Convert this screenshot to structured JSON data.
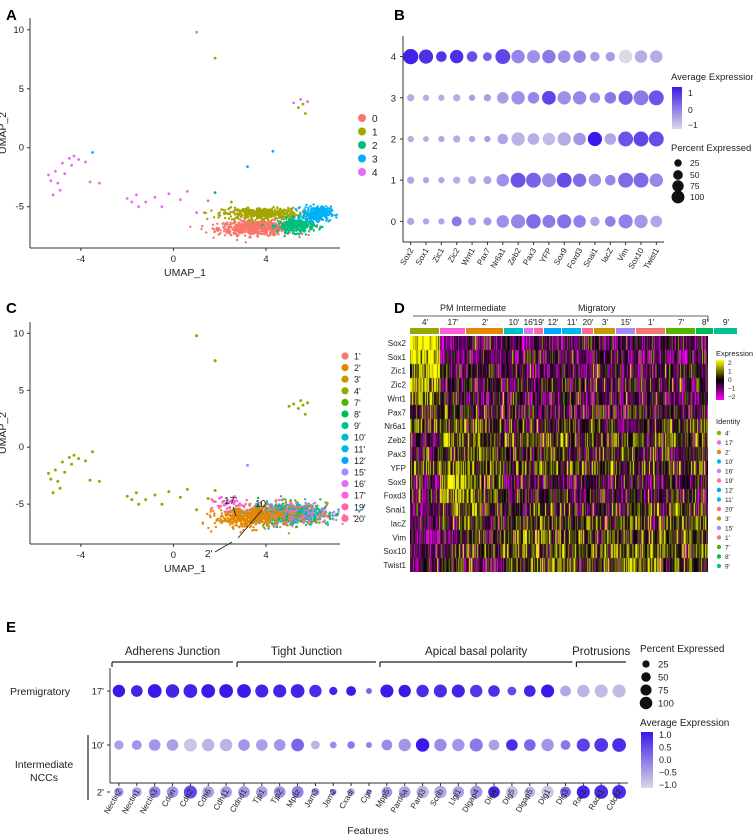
{
  "chart_data": [
    {
      "panel": "A",
      "type": "scatter",
      "xlabel": "UMAP_1",
      "ylabel": "UMAP_2",
      "xticks": [
        "-4",
        "0",
        "4"
      ],
      "yticks": [
        "10",
        "5",
        "0",
        "-5"
      ],
      "xlim": [
        -6.2,
        7.2
      ],
      "ylim": [
        -8.5,
        11.0
      ],
      "legend": [
        {
          "label": "0",
          "color": "#F8766D"
        },
        {
          "label": "1",
          "color": "#A3A500"
        },
        {
          "label": "2",
          "color": "#00BF7D"
        },
        {
          "label": "3",
          "color": "#00B0F6"
        },
        {
          "label": "4",
          "color": "#E76BF3"
        }
      ],
      "clusters": [
        {
          "label": "0",
          "center": [
            3.6,
            -6.8
          ],
          "spread": [
            1.5,
            0.55
          ],
          "n": 650
        },
        {
          "label": "1",
          "center": [
            3.8,
            -5.6
          ],
          "spread": [
            1.5,
            0.45
          ],
          "n": 420
        },
        {
          "label": "2",
          "center": [
            5.3,
            -6.6
          ],
          "spread": [
            0.7,
            0.55
          ],
          "n": 300
        },
        {
          "label": "3",
          "center": [
            6.2,
            -5.6
          ],
          "spread": [
            0.55,
            0.55
          ],
          "n": 280
        },
        {
          "label": "4",
          "center": [
            -4.2,
            -2.6
          ],
          "spread": [
            1.0,
            1.0
          ],
          "n": 0
        }
      ],
      "scattered_points": [
        {
          "label": "4",
          "x": -5.1,
          "y": -2.0
        },
        {
          "label": "4",
          "x": -4.8,
          "y": -1.3
        },
        {
          "label": "4",
          "x": -4.5,
          "y": -0.9
        },
        {
          "label": "4",
          "x": -4.3,
          "y": -0.7
        },
        {
          "label": "4",
          "x": -4.1,
          "y": -1.0
        },
        {
          "label": "4",
          "x": -5.3,
          "y": -2.8
        },
        {
          "label": "4",
          "x": -5.0,
          "y": -3.0
        },
        {
          "label": "4",
          "x": -4.7,
          "y": -2.2
        },
        {
          "label": "4",
          "x": -5.4,
          "y": -2.3
        },
        {
          "label": "4",
          "x": -4.9,
          "y": -3.6
        },
        {
          "label": "4",
          "x": -5.2,
          "y": -4.0
        },
        {
          "label": "4",
          "x": -4.4,
          "y": -1.5
        },
        {
          "label": "4",
          "x": -3.8,
          "y": -1.2
        },
        {
          "label": "4",
          "x": -3.6,
          "y": -2.9
        },
        {
          "label": "4",
          "x": -3.2,
          "y": -3.0
        },
        {
          "label": "4",
          "x": -2.0,
          "y": -4.3
        },
        {
          "label": "4",
          "x": -1.8,
          "y": -4.6
        },
        {
          "label": "4",
          "x": -1.5,
          "y": -5.0
        },
        {
          "label": "4",
          "x": -1.2,
          "y": -4.6
        },
        {
          "label": "4",
          "x": -0.8,
          "y": -4.2
        },
        {
          "label": "4",
          "x": -0.5,
          "y": -5.0
        },
        {
          "label": "4",
          "x": -0.2,
          "y": -3.9
        },
        {
          "label": "4",
          "x": 0.3,
          "y": -4.4
        },
        {
          "label": "4",
          "x": 0.6,
          "y": -3.7
        },
        {
          "label": "4",
          "x": 1.0,
          "y": -5.5
        },
        {
          "label": "4",
          "x": 1.5,
          "y": -4.5
        },
        {
          "label": "4",
          "x": -1.6,
          "y": -4.0
        },
        {
          "label": "4",
          "x": 1.0,
          "y": 9.8
        },
        {
          "label": "1",
          "x": 1.8,
          "y": 7.6
        },
        {
          "label": "4",
          "x": 5.2,
          "y": 3.8
        },
        {
          "label": "4",
          "x": 5.5,
          "y": 4.1
        },
        {
          "label": "1",
          "x": 5.4,
          "y": 3.4
        },
        {
          "label": "4",
          "x": 5.8,
          "y": 3.9
        },
        {
          "label": "1",
          "x": 5.6,
          "y": 3.7
        },
        {
          "label": "1",
          "x": 5.7,
          "y": 2.9
        },
        {
          "label": "3",
          "x": 4.3,
          "y": -0.3
        },
        {
          "label": "3",
          "x": 3.2,
          "y": -1.6
        },
        {
          "label": "3",
          "x": -3.5,
          "y": -0.4
        },
        {
          "label": "2",
          "x": 1.8,
          "y": -3.8
        },
        {
          "label": "1",
          "x": 2.5,
          "y": -4.6
        }
      ]
    },
    {
      "panel": "B",
      "type": "dot",
      "genes": [
        "Sox2",
        "Sox1",
        "Zic1",
        "Zic2",
        "Wnt1",
        "Pax7",
        "Nr6a1",
        "Zeb2",
        "Pax3",
        "YFP",
        "Sox9",
        "Foxd3",
        "Snai1",
        "lacZ",
        "Vim",
        "Sox10",
        "Twist1"
      ],
      "clusters": [
        "4",
        "3",
        "2",
        "1",
        "0"
      ],
      "avg_expression": [
        [
          1.5,
          1.3,
          1.2,
          1.3,
          0.9,
          0.6,
          1.0,
          0.1,
          0.0,
          0.3,
          0.0,
          0.1,
          -0.2,
          -0.2,
          -1.0,
          -0.4,
          -0.4
        ],
        [
          -0.4,
          -0.4,
          -0.4,
          -0.4,
          -0.2,
          -0.2,
          -0.2,
          0.0,
          0.1,
          1.0,
          0.0,
          0.1,
          0.0,
          0.3,
          0.6,
          0.3,
          0.8
        ],
        [
          -0.4,
          -0.4,
          -0.3,
          -0.4,
          -0.3,
          -0.2,
          -0.3,
          -0.5,
          -0.4,
          -0.6,
          -0.4,
          -0.1,
          1.6,
          -0.3,
          0.8,
          1.0,
          0.9
        ],
        [
          -0.3,
          -0.3,
          -0.3,
          -0.4,
          -0.4,
          -0.3,
          0.0,
          0.8,
          0.6,
          0.0,
          0.9,
          0.5,
          0.0,
          0.1,
          0.5,
          0.5,
          0.1
        ],
        [
          -0.3,
          -0.3,
          -0.3,
          0.3,
          -0.2,
          -0.1,
          0.0,
          0.1,
          0.5,
          0.3,
          0.4,
          0.2,
          -0.3,
          0.2,
          0.2,
          -0.1,
          -0.3
        ]
      ],
      "pct_expressed": [
        [
          95,
          80,
          40,
          70,
          40,
          25,
          90,
          70,
          65,
          70,
          60,
          60,
          30,
          30,
          70,
          60,
          60
        ],
        [
          15,
          10,
          10,
          15,
          10,
          15,
          50,
          70,
          50,
          75,
          70,
          70,
          40,
          50,
          80,
          90,
          90
        ],
        [
          10,
          8,
          10,
          15,
          10,
          10,
          40,
          70,
          50,
          60,
          70,
          60,
          80,
          50,
          90,
          90,
          90
        ],
        [
          15,
          10,
          10,
          15,
          20,
          20,
          60,
          90,
          90,
          75,
          90,
          70,
          60,
          40,
          90,
          90,
          70
        ],
        [
          15,
          10,
          10,
          35,
          20,
          20,
          60,
          80,
          85,
          65,
          80,
          60,
          30,
          40,
          80,
          70,
          50
        ]
      ],
      "legend_avg_title": "Average Expression",
      "legend_avg_ticks": [
        "1",
        "0",
        "−1"
      ],
      "legend_pct_title": "Percent Expressed",
      "legend_pct_values": [
        "25",
        "50",
        "75",
        "100"
      ],
      "color_low": "#D9D9E8",
      "color_high": "#3A1AE8"
    },
    {
      "panel": "C",
      "type": "scatter",
      "xlabel": "UMAP_1",
      "ylabel": "UMAP_2",
      "xticks": [
        "-4",
        "0",
        "4"
      ],
      "yticks": [
        "10",
        "5",
        "0",
        "-5"
      ],
      "legend": [
        {
          "label": "1'",
          "color": "#F8766D"
        },
        {
          "label": "2'",
          "color": "#E38900"
        },
        {
          "label": "3'",
          "color": "#C49A00"
        },
        {
          "label": "4'",
          "color": "#99A800"
        },
        {
          "label": "7'",
          "color": "#53B400"
        },
        {
          "label": "8'",
          "color": "#00BC56"
        },
        {
          "label": "9'",
          "color": "#00C094"
        },
        {
          "label": "10'",
          "color": "#00BFC4"
        },
        {
          "label": "11'",
          "color": "#00B6EB"
        },
        {
          "label": "12'",
          "color": "#06A4FF"
        },
        {
          "label": "15'",
          "color": "#A58AFF"
        },
        {
          "label": "16'",
          "color": "#DF70F8"
        },
        {
          "label": "17'",
          "color": "#FB61D7"
        },
        {
          "label": "19'",
          "color": "#FF66A8"
        },
        {
          "label": "20'",
          "color": "#FF6C91"
        }
      ],
      "annotations": [
        "17'",
        "10'",
        "2'"
      ]
    },
    {
      "panel": "D",
      "type": "heatmap",
      "group_labels": [
        "PM Intermediate",
        "Migratory"
      ],
      "identities": [
        "4'",
        "17'",
        "2'",
        "10'",
        "16'",
        "19'",
        "12'",
        "11'",
        "20'",
        "3'",
        "15'",
        "1'",
        "7'",
        "8'",
        "9'"
      ],
      "identity_colors": [
        "#99A800",
        "#FB61D7",
        "#E38900",
        "#00BFC4",
        "#DF70F8",
        "#FF66A8",
        "#06A4FF",
        "#00B6EB",
        "#FF6C91",
        "#C49A00",
        "#A58AFF",
        "#F8766D",
        "#53B400",
        "#00BC56",
        "#00C094"
      ],
      "genes": [
        "Sox2",
        "Sox1",
        "Zic1",
        "Zic2",
        "Wnt1",
        "Pax7",
        "Nr6a1",
        "Zeb2",
        "Pax3",
        "YFP",
        "Sox9",
        "Foxd3",
        "Snai1",
        "lacZ",
        "Vim",
        "Sox10",
        "Twist1"
      ],
      "legend_expression_title": "Expression",
      "legend_expression_ticks": [
        "2",
        "1",
        "0",
        "−1",
        "−2"
      ],
      "legend_identity_title": "Identity",
      "legend_identity_order": [
        "4'",
        "17'",
        "2'",
        "10'",
        "16'",
        "19'",
        "12'",
        "11'",
        "20'",
        "3'",
        "15'",
        "1'",
        "7'",
        "8'",
        "9'"
      ]
    },
    {
      "panel": "E",
      "type": "dot",
      "categories": [
        {
          "label": "Adherens Junction"
        },
        {
          "label": "Tight Junction"
        },
        {
          "label": "Apical basal polarity"
        },
        {
          "label": "Protrusions"
        }
      ],
      "features": [
        "Nectin2",
        "Nectin1",
        "Nectin3",
        "Cdon",
        "Cdh2",
        "Cdh6",
        "Cdh11",
        "Cldnd1",
        "Tjp1",
        "Tjp2",
        "Mpdz",
        "Jam3",
        "Jam2",
        "Cxadr",
        "Cgn",
        "Mpp5",
        "Pard6a",
        "Pard3",
        "Scrib",
        "Llgl1",
        "Dlgap4",
        "Dlg4",
        "Dlg5",
        "Dlgap5",
        "Dlg1",
        "Dlg3",
        "Rac1",
        "Rack1",
        "Cdc42"
      ],
      "feature_groups": [
        0,
        0,
        0,
        0,
        0,
        0,
        0,
        1,
        1,
        1,
        1,
        1,
        1,
        1,
        1,
        2,
        2,
        2,
        2,
        2,
        2,
        2,
        2,
        2,
        2,
        2,
        3,
        3,
        3
      ],
      "rows": [
        "17'",
        "10'",
        "2'"
      ],
      "row_group_labels": [
        "Premigratory",
        "Intermediate NCCs"
      ],
      "avg_expression": [
        [
          1.0,
          0.9,
          1.0,
          0.9,
          0.9,
          1.0,
          1.0,
          1.0,
          0.9,
          0.9,
          0.9,
          0.8,
          0.9,
          1.0,
          0.2,
          1.0,
          1.0,
          0.8,
          0.8,
          0.9,
          0.7,
          0.8,
          0.5,
          0.9,
          1.0,
          -0.5,
          -0.6,
          -0.7,
          -0.7
        ],
        [
          -0.4,
          -0.3,
          -0.3,
          -0.4,
          -0.8,
          -0.6,
          -0.6,
          -0.3,
          -0.4,
          -0.3,
          0.2,
          -0.6,
          -0.2,
          0.0,
          -0.1,
          -0.2,
          -0.3,
          1.0,
          -0.2,
          -0.3,
          0.0,
          -0.4,
          0.8,
          0.2,
          -0.3,
          0.0,
          0.6,
          0.7,
          0.8
        ],
        [
          -0.3,
          -0.4,
          -0.1,
          -0.3,
          0.5,
          -0.4,
          -0.3,
          -0.3,
          -0.4,
          -0.2,
          -0.1,
          -0.3,
          0.0,
          -0.5,
          -0.2,
          -0.3,
          -0.4,
          -0.6,
          -0.5,
          -0.4,
          -0.3,
          0.9,
          -0.7,
          -0.6,
          -0.8,
          0.2,
          0.9,
          0.8,
          0.8
        ]
      ],
      "pct_expressed": [
        [
          70,
          60,
          90,
          85,
          90,
          90,
          90,
          90,
          80,
          80,
          90,
          70,
          25,
          40,
          10,
          80,
          70,
          70,
          80,
          80,
          70,
          60,
          30,
          60,
          80,
          50,
          70,
          80,
          80
        ],
        [
          35,
          40,
          60,
          60,
          80,
          70,
          70,
          60,
          60,
          60,
          75,
          30,
          15,
          20,
          10,
          50,
          70,
          85,
          70,
          70,
          80,
          50,
          60,
          60,
          70,
          40,
          80,
          90,
          90
        ],
        [
          35,
          40,
          60,
          60,
          80,
          60,
          60,
          60,
          60,
          60,
          65,
          25,
          12,
          20,
          8,
          50,
          60,
          70,
          70,
          60,
          70,
          60,
          60,
          50,
          70,
          50,
          80,
          90,
          90
        ]
      ],
      "xlabel": "Features",
      "legend_pct_title": "Percent Expressed",
      "legend_pct_values": [
        "25",
        "50",
        "75",
        "100"
      ],
      "legend_avg_title": "Average Expression",
      "legend_avg_ticks": [
        "1.0",
        "0.5",
        "0.0",
        "−0.5",
        "−1.0"
      ],
      "color_low": "#D9D9E6",
      "color_high": "#3A1AE8"
    }
  ],
  "panels": {
    "a": "A",
    "b": "B",
    "c": "C",
    "d": "D",
    "e": "E"
  }
}
